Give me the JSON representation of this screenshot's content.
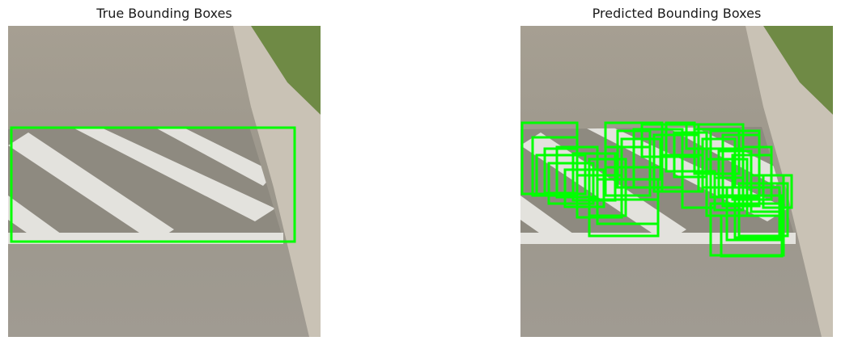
{
  "panels": [
    {
      "title": "True Bounding Boxes",
      "box_count": 1
    },
    {
      "title": "Predicted Bounding Boxes",
      "box_count": 40
    }
  ],
  "colors": {
    "box": "#00ff00",
    "road": "#9a958b",
    "marking": "#e3e2dd",
    "grass": "#6f8a45"
  }
}
